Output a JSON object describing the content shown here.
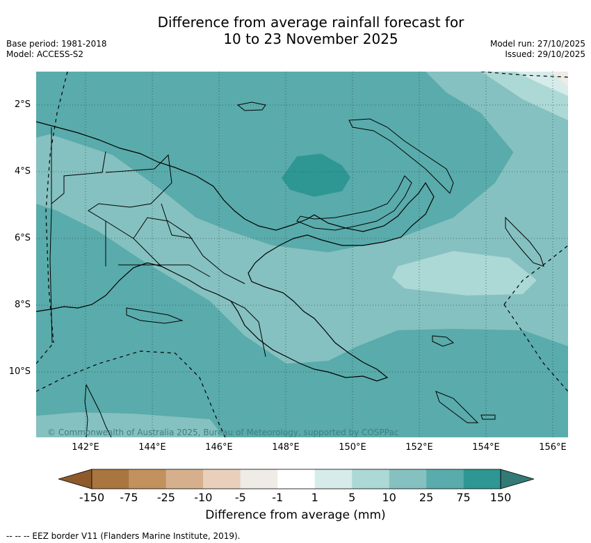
{
  "title_line1": "Difference from average rainfall forecast for",
  "title_line2": "10 to 23 November 2025",
  "meta_left": {
    "base_period": "Base period: 1981-2018",
    "model": "Model: ACCESS-S2"
  },
  "meta_right": {
    "model_run": "Model run: 27/10/2025",
    "issued": "Issued: 29/10/2025"
  },
  "copyright": "© Commonwealth of Australia 2025, Bureau of Meteorology, supported by COSPPac",
  "lon_labels": [
    "142°E",
    "144°E",
    "146°E",
    "148°E",
    "150°E",
    "152°E",
    "154°E",
    "156°E"
  ],
  "lat_labels": [
    "2°S",
    "4°S",
    "6°S",
    "8°S",
    "10°S"
  ],
  "legend": {
    "title": "Difference from average (mm)",
    "ticks": [
      "-150",
      "-75",
      "-25",
      "-10",
      "-5",
      "-1",
      "1",
      "5",
      "10",
      "25",
      "75",
      "150"
    ],
    "colors": [
      "#8e5a2b",
      "#a97640",
      "#c2915e",
      "#d6b08c",
      "#e8d0bc",
      "#efebe7",
      "#ffffff",
      "#d6ecea",
      "#acd8d6",
      "#85c1c0",
      "#5aabab",
      "#2e9794",
      "#337a76"
    ]
  },
  "eez_note": "--  --  -- EEZ border V11 (Flanders Marine Institute, 2019)."
}
